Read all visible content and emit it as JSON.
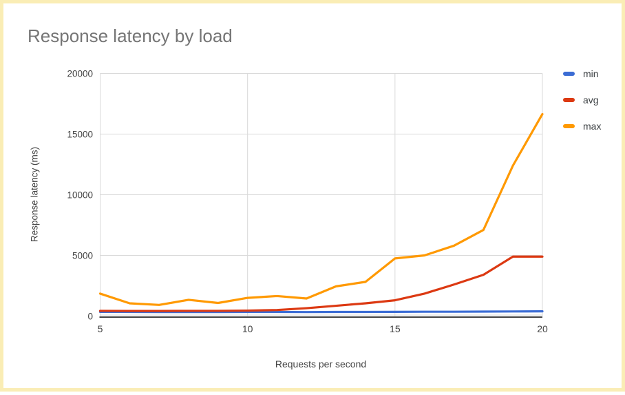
{
  "page": {
    "border_color": "#FAEDB5",
    "background": "#FFFFFF"
  },
  "colors": {
    "title_text": "#757575",
    "axis_text": "#424242",
    "legend_text": "#3C4043",
    "gridline": "#D9D9D9",
    "baseline": "#424242"
  },
  "chart_data": {
    "type": "line",
    "title": "Response latency by load",
    "xlabel": "Requests per second",
    "ylabel": "Response latency (ms)",
    "x": [
      5,
      6,
      7,
      8,
      9,
      10,
      11,
      12,
      13,
      14,
      15,
      16,
      17,
      18,
      19,
      20
    ],
    "series": [
      {
        "name": "min",
        "color": "#3B6CD4",
        "values": [
          350,
          340,
          330,
          330,
          330,
          340,
          340,
          330,
          340,
          340,
          350,
          360,
          360,
          370,
          380,
          390
        ]
      },
      {
        "name": "avg",
        "color": "#DC3912",
        "values": [
          430,
          420,
          420,
          430,
          430,
          450,
          500,
          650,
          850,
          1050,
          1300,
          1850,
          2600,
          3400,
          4900,
          4900
        ]
      },
      {
        "name": "max",
        "color": "#FF9900",
        "values": [
          1850,
          1050,
          920,
          1340,
          1080,
          1500,
          1650,
          1450,
          2450,
          2820,
          4750,
          5000,
          5800,
          7100,
          12400,
          16650
        ]
      }
    ],
    "xlim": [
      5,
      20
    ],
    "ylim": [
      0,
      20000
    ],
    "x_ticks": [
      5,
      10,
      15,
      20
    ],
    "y_ticks": [
      0,
      5000,
      10000,
      15000,
      20000
    ],
    "grid": true,
    "legend_position": "right"
  }
}
